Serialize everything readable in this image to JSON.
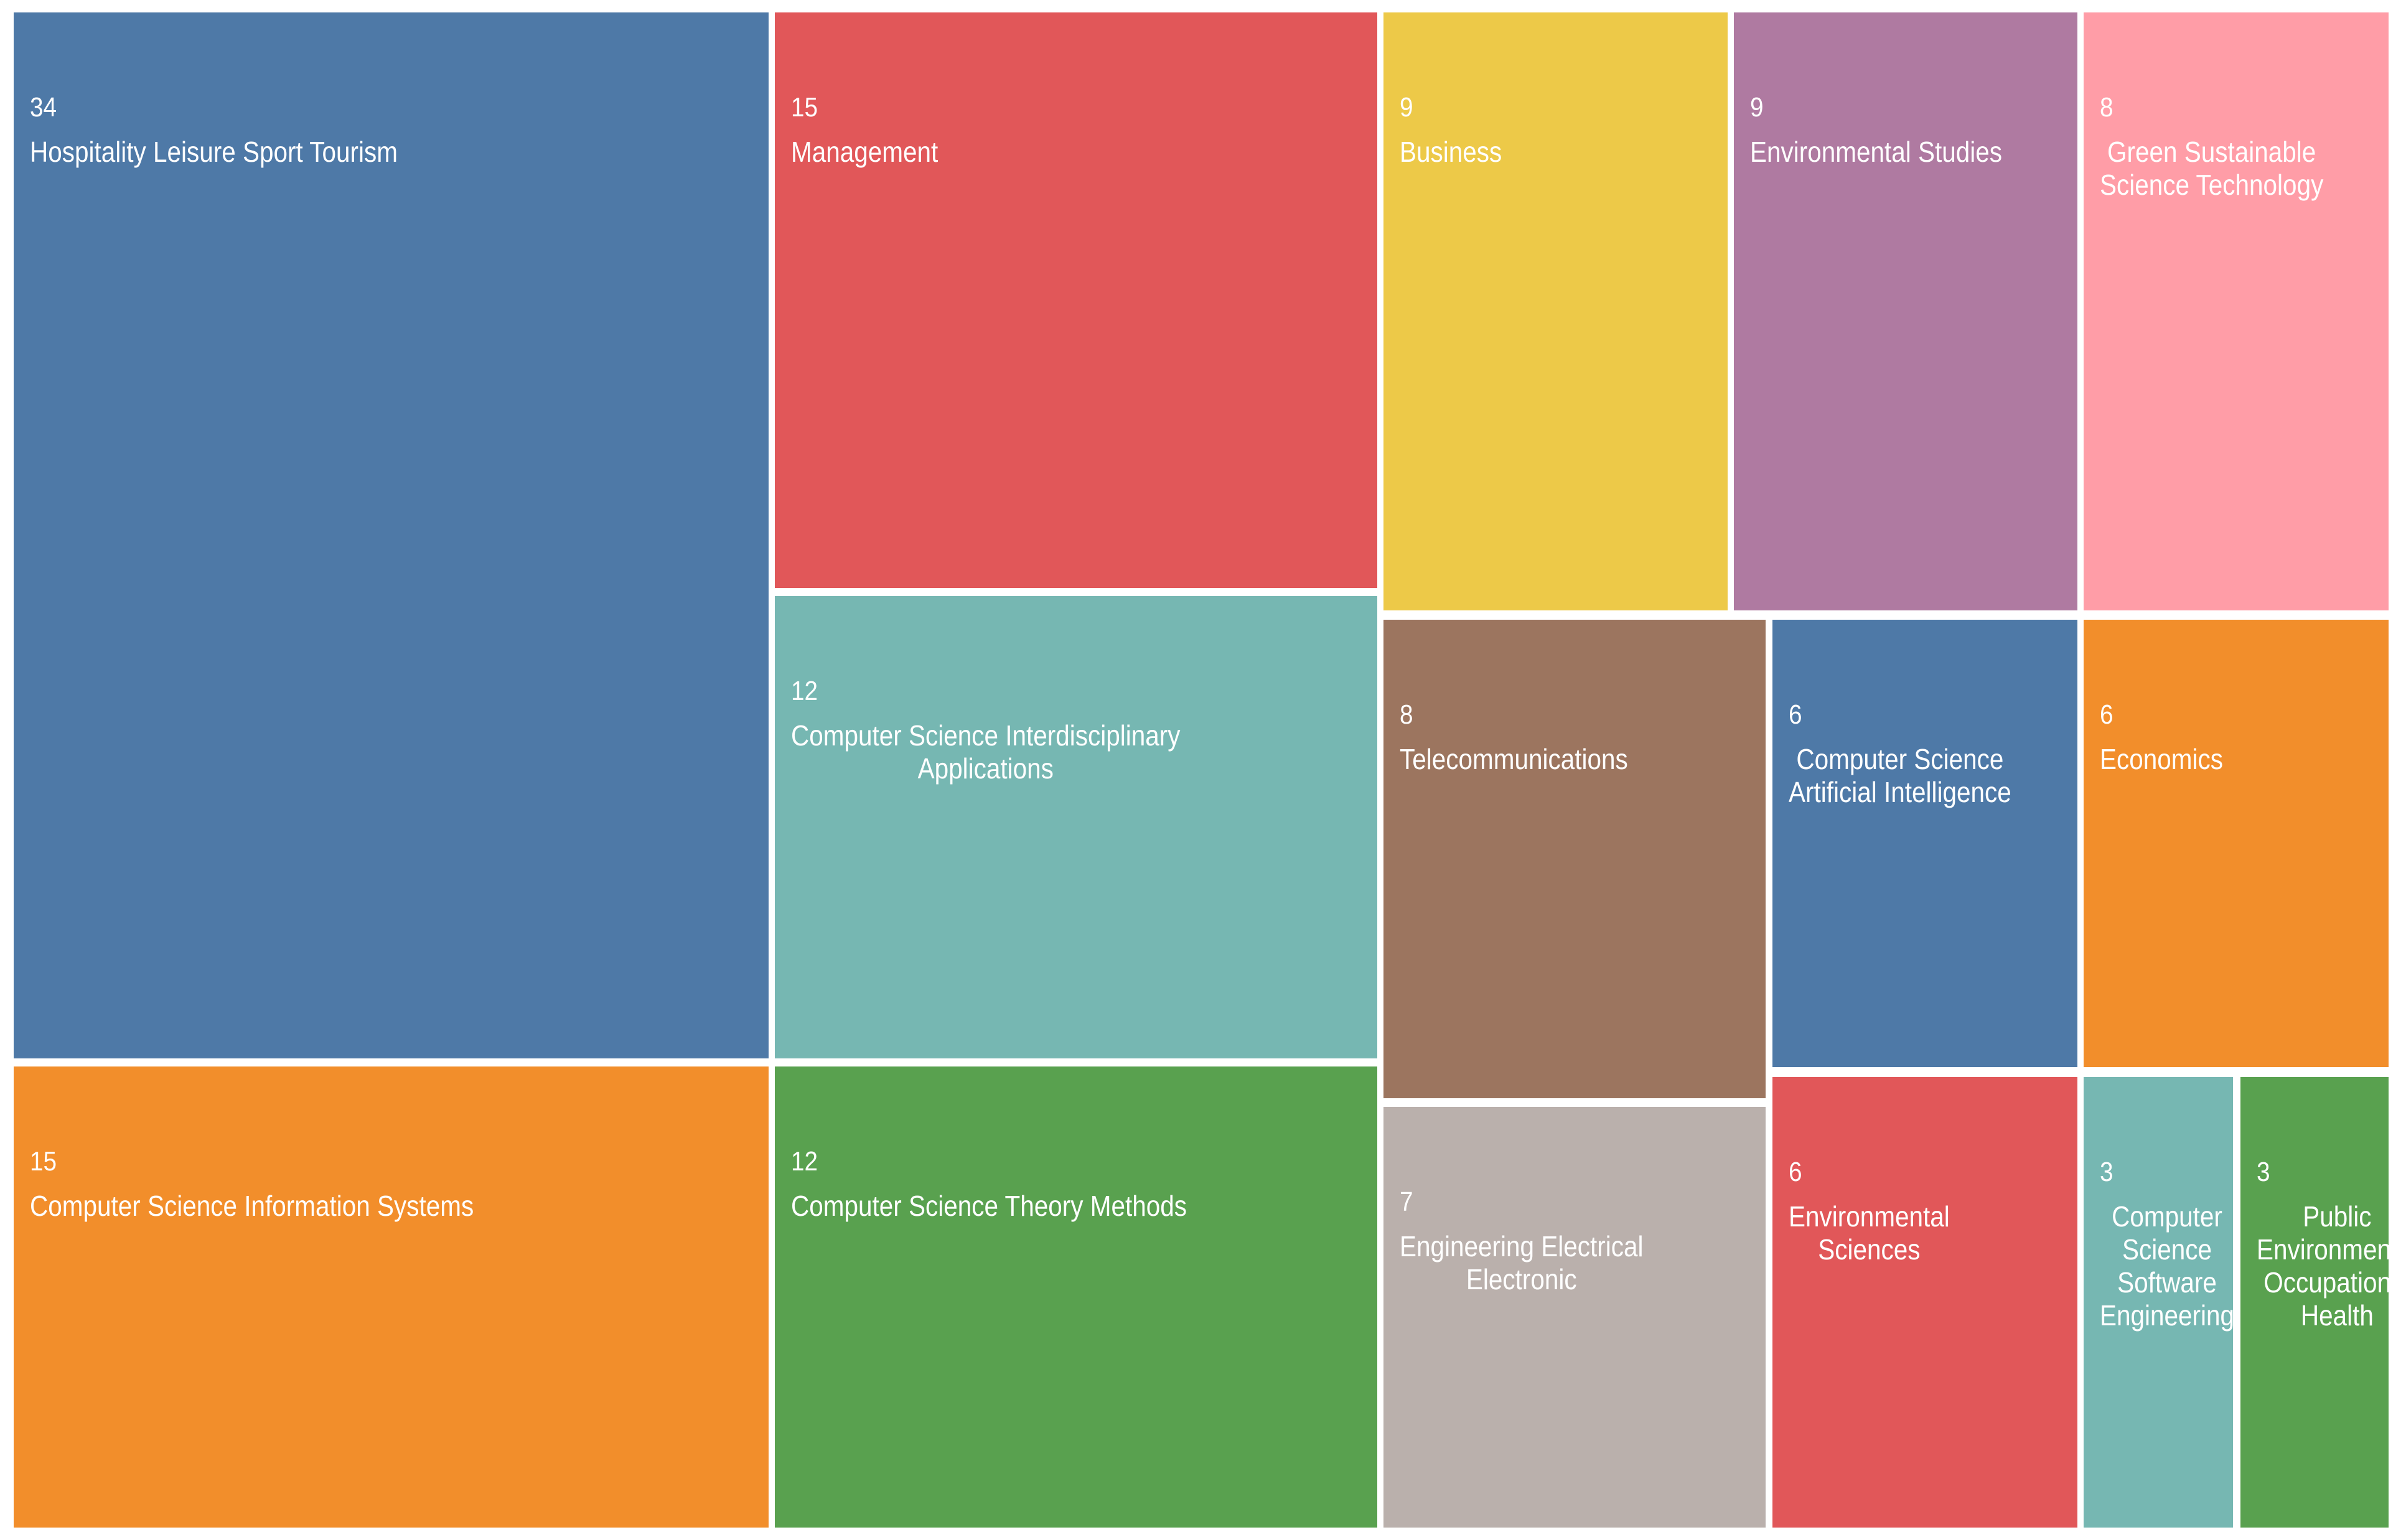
{
  "chart_data": {
    "type": "treemap",
    "items": [
      {
        "value": 34,
        "label": "Hospitality Leisure Sport Tourism",
        "color": "#4e79a7"
      },
      {
        "value": 15,
        "label": "Management",
        "color": "#e15759"
      },
      {
        "value": 9,
        "label": "Business",
        "color": "#edc948"
      },
      {
        "value": 9,
        "label": "Environmental Studies",
        "color": "#af7aa1"
      },
      {
        "value": 8,
        "label": "Green Sustainable\nScience Technology",
        "color": "#ff9da7"
      },
      {
        "value": 12,
        "label": "Computer Science Interdisciplinary\nApplications",
        "color": "#76b7b2"
      },
      {
        "value": 8,
        "label": "Telecommunications",
        "color": "#9c755f"
      },
      {
        "value": 6,
        "label": "Computer Science\nArtificial Intelligence",
        "color": "#4e79a7"
      },
      {
        "value": 6,
        "label": "Economics",
        "color": "#f28e2b"
      },
      {
        "value": 15,
        "label": "Computer Science Information Systems",
        "color": "#f28e2b"
      },
      {
        "value": 12,
        "label": "Computer Science Theory Methods",
        "color": "#59a14f"
      },
      {
        "value": 7,
        "label": "Engineering Electrical\nElectronic",
        "color": "#bab0ac"
      },
      {
        "value": 6,
        "label": "Environmental\nSciences",
        "color": "#e15759"
      },
      {
        "value": 3,
        "label": "Computer\nScience\nSoftware\nEngineering",
        "color": "#76b7b2"
      },
      {
        "value": 3,
        "label": "Public\nEnvironmental\nOccupational\nHealth",
        "color": "#59a14f"
      }
    ]
  }
}
